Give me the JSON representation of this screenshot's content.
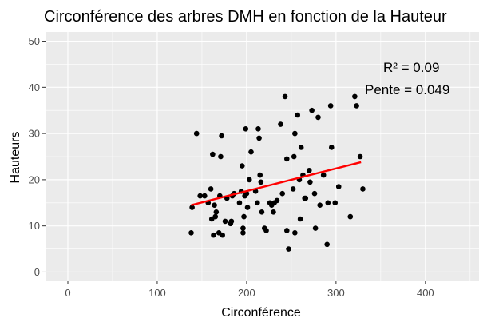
{
  "chart_data": {
    "type": "scatter",
    "title": "Circonférence des arbres DMH en fonction de la Hauteur",
    "xlabel": "Circonférence",
    "ylabel": "Hauteurs",
    "xlim": [
      -25,
      460
    ],
    "ylim": [
      -2,
      52
    ],
    "xticks": [
      "0",
      "100",
      "200",
      "300",
      "400"
    ],
    "yticks": [
      "0",
      "10",
      "20",
      "30",
      "40",
      "50"
    ],
    "xtick_values": [
      0,
      100,
      200,
      300,
      400
    ],
    "ytick_values": [
      0,
      10,
      20,
      30,
      40,
      50
    ],
    "grid": true,
    "colors": {
      "panel_background": "#ebebeb",
      "grid_major": "#ffffff",
      "points": "#000000",
      "regression_line": "#ff0000"
    },
    "points": [
      [
        138,
        8.5
      ],
      [
        139,
        14
      ],
      [
        144,
        30
      ],
      [
        148,
        16.5
      ],
      [
        153,
        16.5
      ],
      [
        157,
        15
      ],
      [
        160,
        18
      ],
      [
        161,
        11.5
      ],
      [
        162,
        25.5
      ],
      [
        163,
        8
      ],
      [
        164,
        14.5
      ],
      [
        165,
        12
      ],
      [
        166,
        13
      ],
      [
        169,
        8.5
      ],
      [
        170,
        16.5
      ],
      [
        171,
        25
      ],
      [
        172,
        29.5
      ],
      [
        173,
        8
      ],
      [
        176,
        11
      ],
      [
        178,
        16
      ],
      [
        182,
        10.5
      ],
      [
        183,
        11
      ],
      [
        184,
        16.5
      ],
      [
        186,
        17
      ],
      [
        192,
        15
      ],
      [
        194,
        17.5
      ],
      [
        195,
        23
      ],
      [
        196,
        9.5
      ],
      [
        196,
        8.5
      ],
      [
        197,
        12
      ],
      [
        198,
        16.5
      ],
      [
        199,
        31
      ],
      [
        200,
        17
      ],
      [
        201,
        14
      ],
      [
        203,
        20
      ],
      [
        205,
        26
      ],
      [
        210,
        17.5
      ],
      [
        212,
        15
      ],
      [
        213,
        31
      ],
      [
        214,
        29
      ],
      [
        215,
        21
      ],
      [
        216,
        19.5
      ],
      [
        217,
        13
      ],
      [
        220,
        9.5
      ],
      [
        222,
        9
      ],
      [
        226,
        15
      ],
      [
        228,
        14.5
      ],
      [
        230,
        13
      ],
      [
        231,
        15
      ],
      [
        234,
        15.5
      ],
      [
        238,
        32
      ],
      [
        240,
        17
      ],
      [
        243,
        38
      ],
      [
        245,
        24.5
      ],
      [
        245,
        9
      ],
      [
        247,
        5
      ],
      [
        252,
        18
      ],
      [
        253,
        25
      ],
      [
        254,
        8.5
      ],
      [
        254,
        30
      ],
      [
        257,
        34
      ],
      [
        259,
        20
      ],
      [
        260,
        11.5
      ],
      [
        261,
        27
      ],
      [
        263,
        21
      ],
      [
        265,
        16
      ],
      [
        266,
        16
      ],
      [
        270,
        22
      ],
      [
        271,
        19.5
      ],
      [
        273,
        35
      ],
      [
        276,
        17
      ],
      [
        277,
        9.5
      ],
      [
        280,
        33.5
      ],
      [
        282,
        14.5
      ],
      [
        286,
        21
      ],
      [
        290,
        6
      ],
      [
        291,
        15
      ],
      [
        294,
        36
      ],
      [
        295,
        27
      ],
      [
        299,
        15
      ],
      [
        303,
        18.5
      ],
      [
        316,
        12
      ],
      [
        321,
        38
      ],
      [
        323,
        36
      ],
      [
        327,
        25
      ],
      [
        330,
        18
      ]
    ],
    "regression": {
      "x_start": 138,
      "y_start": 14.5,
      "x_end": 328,
      "y_end": 23.8
    },
    "annotations": {
      "r2": "R² =  0.09",
      "slope": "Pente =  0.049"
    }
  }
}
